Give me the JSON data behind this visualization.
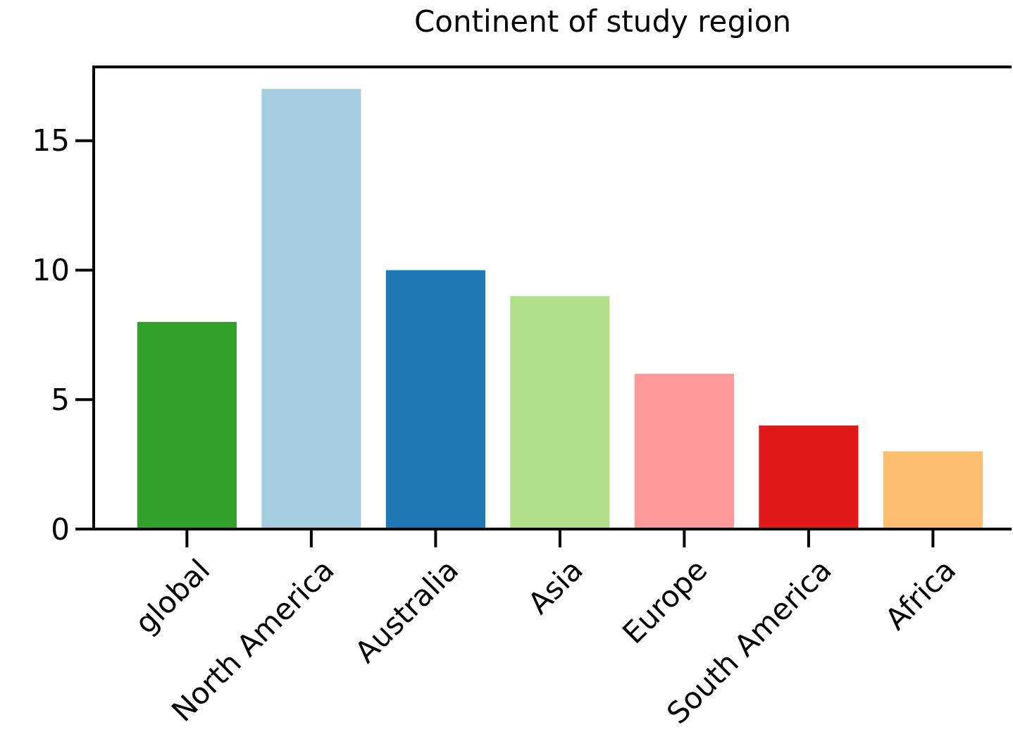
{
  "chart_data": {
    "type": "bar",
    "title": "Continent of study region",
    "categories": [
      "global",
      "North America",
      "Australia",
      "Asia",
      "Europe",
      "South America",
      "Africa"
    ],
    "values": [
      8,
      17,
      10,
      9,
      6,
      4,
      3
    ],
    "colors": [
      "#33a02c",
      "#a6cee3",
      "#1f78b4",
      "#b2df8a",
      "#fb9a99",
      "#e31a1c",
      "#fdbf6f"
    ],
    "ylim": [
      0,
      17.85
    ],
    "yticks": [
      0,
      5,
      10,
      15
    ],
    "grid": false
  }
}
